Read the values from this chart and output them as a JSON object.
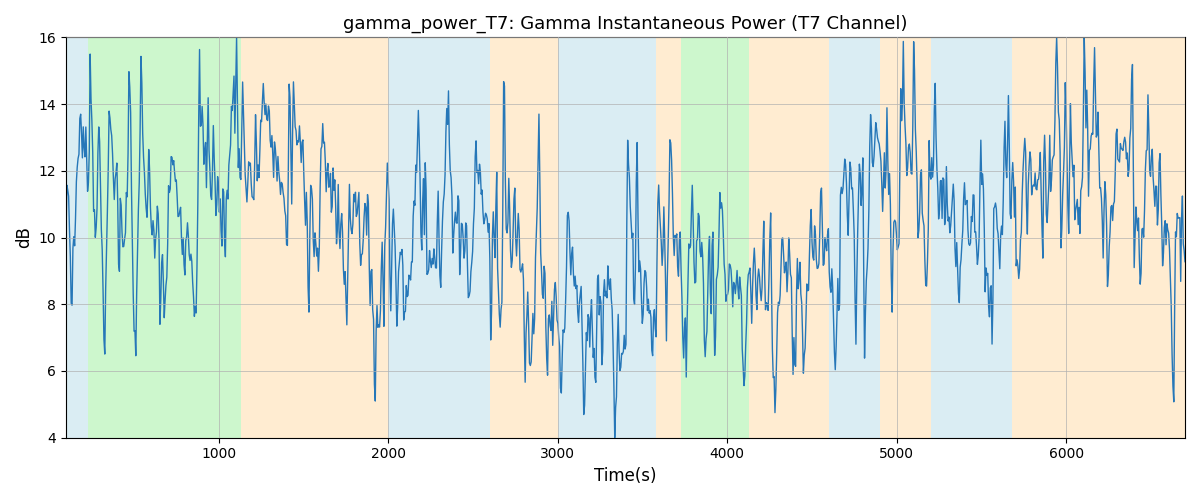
{
  "title": "gamma_power_T7: Gamma Instantaneous Power (T7 Channel)",
  "xlabel": "Time(s)",
  "ylabel": "dB",
  "ylim": [
    4,
    16
  ],
  "xlim": [
    100,
    6700
  ],
  "yticks": [
    4,
    6,
    8,
    10,
    12,
    14,
    16
  ],
  "xticks": [
    1000,
    2000,
    3000,
    4000,
    5000,
    6000
  ],
  "line_color": "#2677b8",
  "line_width": 1.0,
  "background_color": "#ffffff",
  "grid_color": "#b0b0b0",
  "bands": [
    {
      "xmin": 100,
      "xmax": 230,
      "color": "#add8e6",
      "alpha": 0.45
    },
    {
      "xmin": 230,
      "xmax": 1130,
      "color": "#90ee90",
      "alpha": 0.45
    },
    {
      "xmin": 1130,
      "xmax": 2000,
      "color": "#ffd59a",
      "alpha": 0.45
    },
    {
      "xmin": 2000,
      "xmax": 2600,
      "color": "#add8e6",
      "alpha": 0.45
    },
    {
      "xmin": 2600,
      "xmax": 3000,
      "color": "#ffd59a",
      "alpha": 0.45
    },
    {
      "xmin": 3000,
      "xmax": 3580,
      "color": "#add8e6",
      "alpha": 0.45
    },
    {
      "xmin": 3580,
      "xmax": 3730,
      "color": "#ffd59a",
      "alpha": 0.45
    },
    {
      "xmin": 3730,
      "xmax": 4130,
      "color": "#90ee90",
      "alpha": 0.45
    },
    {
      "xmin": 4130,
      "xmax": 4600,
      "color": "#ffd59a",
      "alpha": 0.45
    },
    {
      "xmin": 4600,
      "xmax": 4900,
      "color": "#add8e6",
      "alpha": 0.45
    },
    {
      "xmin": 4900,
      "xmax": 5200,
      "color": "#ffd59a",
      "alpha": 0.45
    },
    {
      "xmin": 5200,
      "xmax": 5680,
      "color": "#add8e6",
      "alpha": 0.45
    },
    {
      "xmin": 5680,
      "xmax": 6700,
      "color": "#ffd59a",
      "alpha": 0.45
    }
  ],
  "seed": 7,
  "n_points": 1300
}
